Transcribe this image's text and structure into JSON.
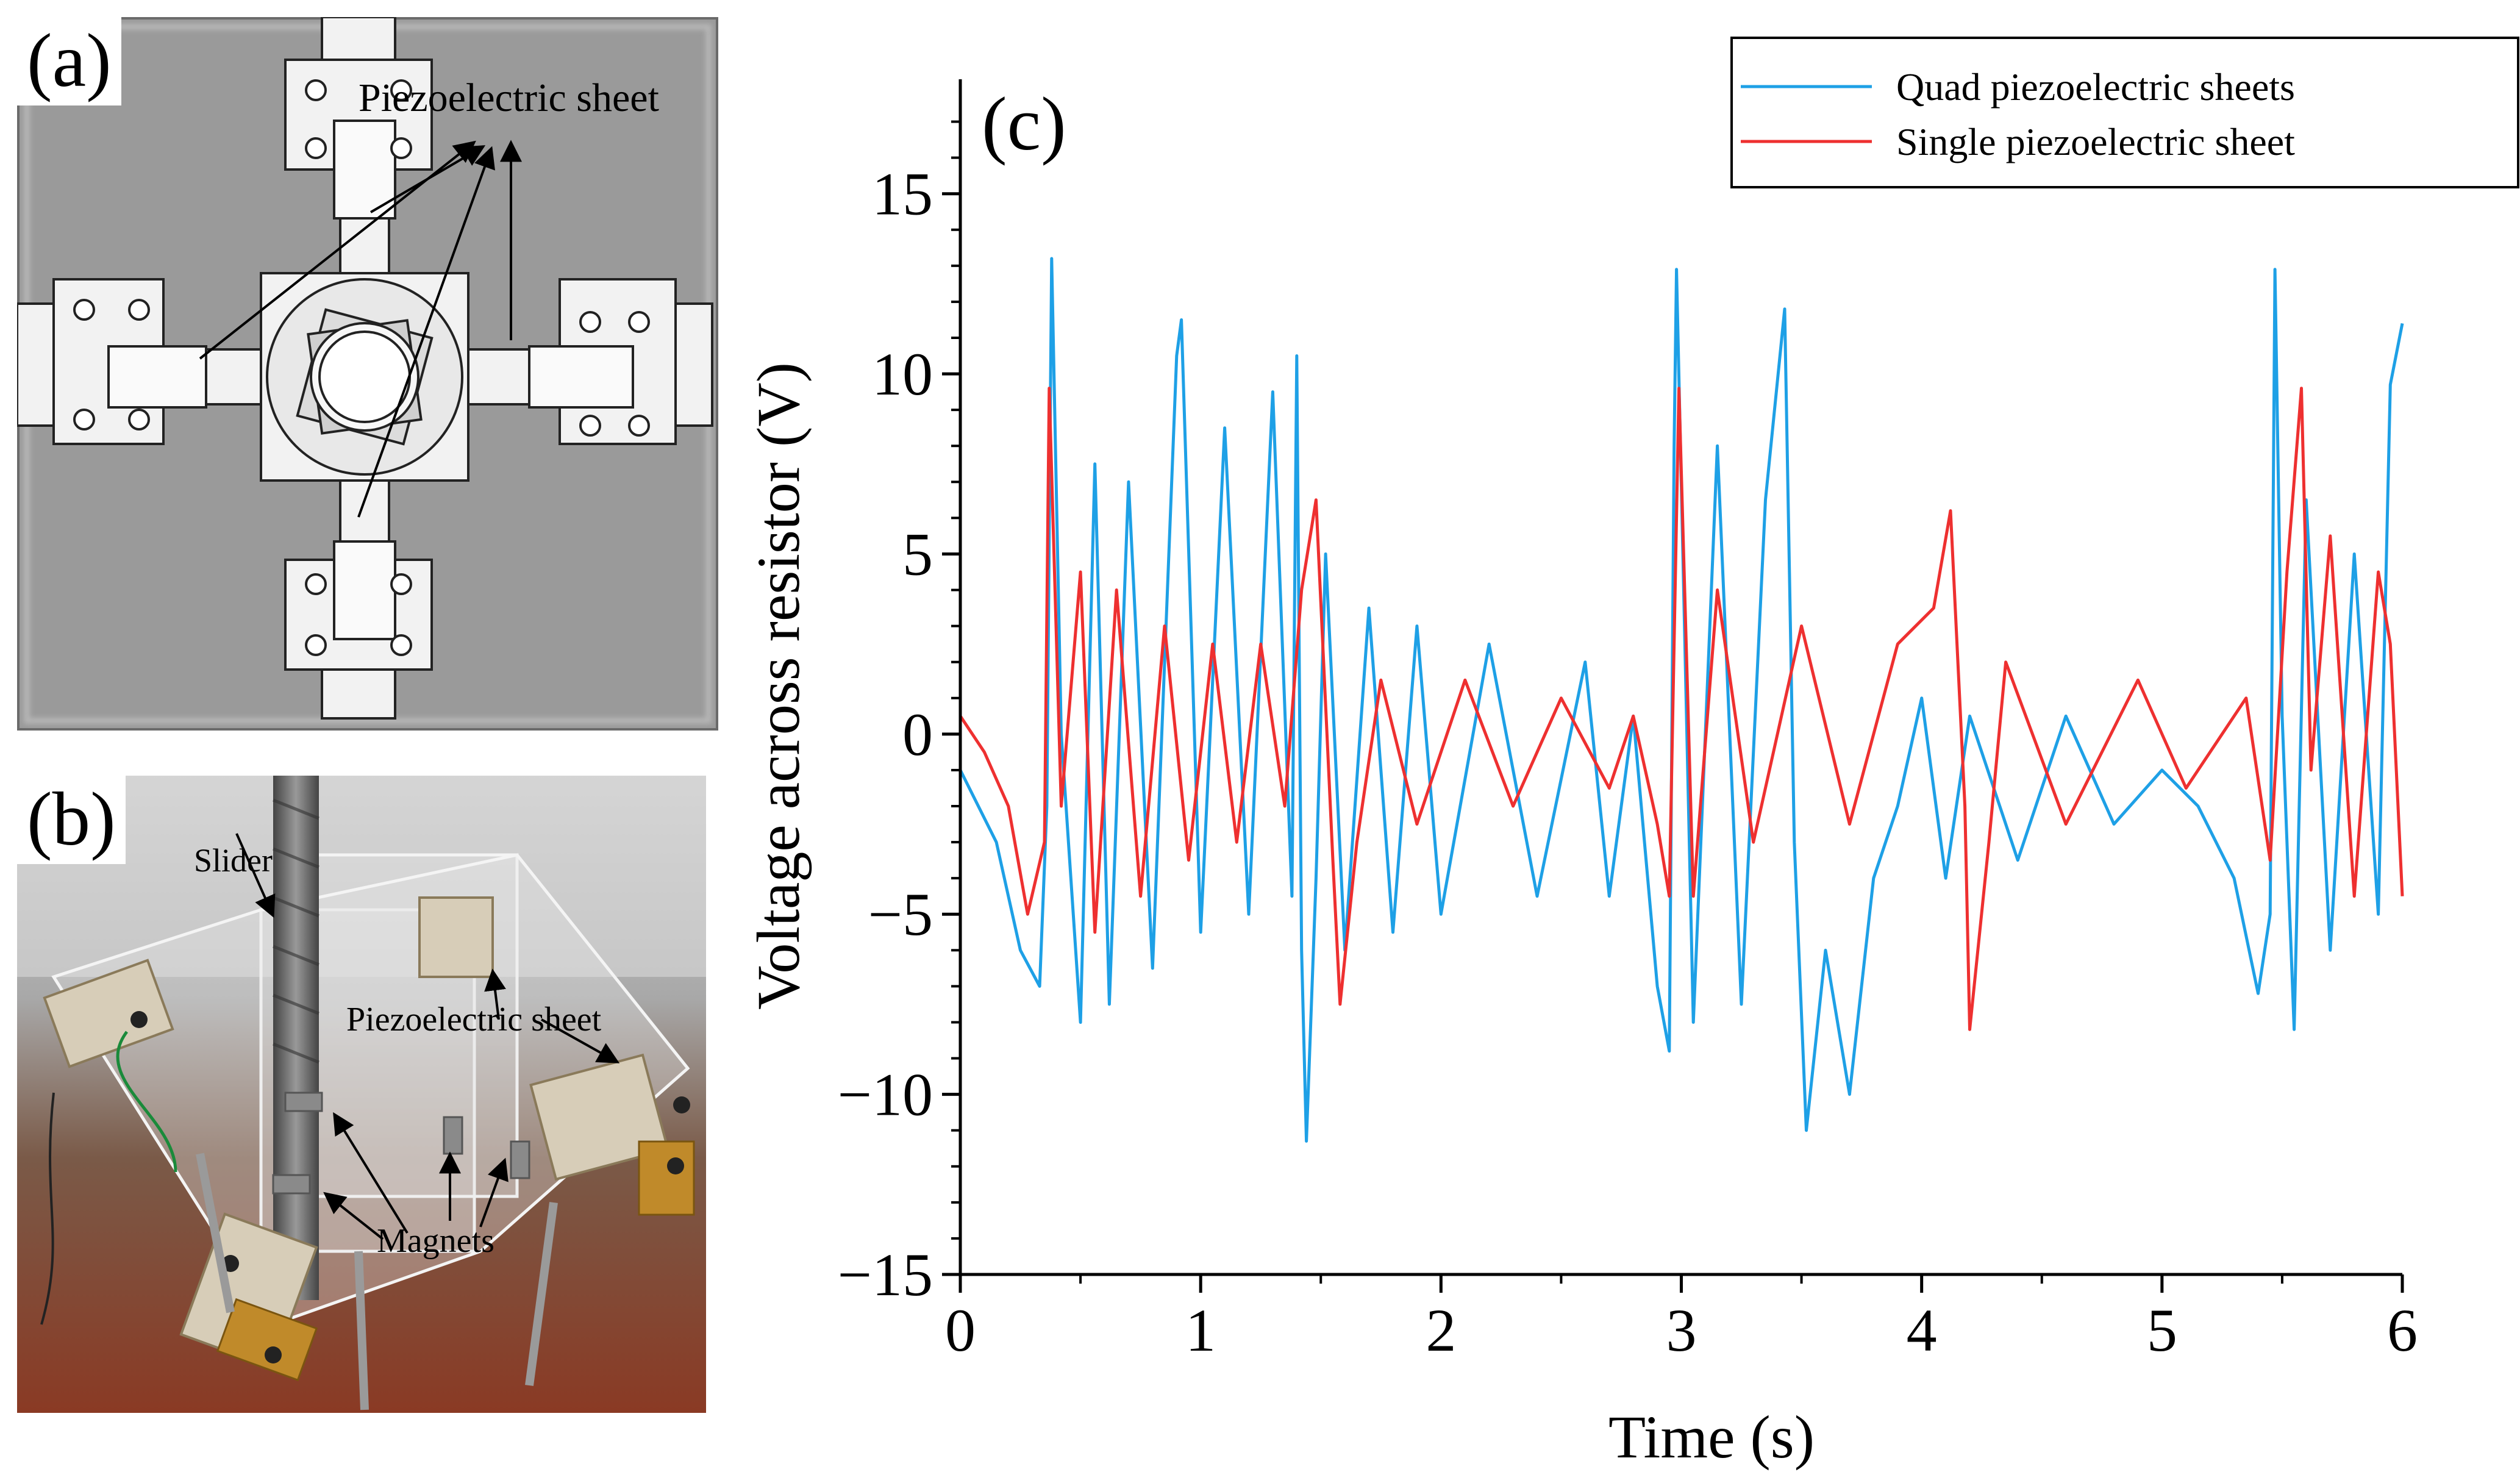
{
  "panel_a": {
    "label": "(a)",
    "annotation": "Piezoelectric sheet"
  },
  "panel_b": {
    "label": "(b)",
    "annotations": {
      "slider": "Slider",
      "piezo": "Piezoelectric sheet",
      "magnets": "Magnets"
    }
  },
  "chart_data": {
    "type": "line",
    "panel_label": "(c)",
    "title": "",
    "xlabel": "Time (s)",
    "ylabel": "Voltage across resistor (V)",
    "xlim": [
      0,
      6
    ],
    "ylim": [
      -15,
      17.5
    ],
    "xticks": [
      0,
      1,
      2,
      3,
      4,
      5,
      6
    ],
    "yticks": [
      -15,
      -10,
      -5,
      0,
      5,
      10,
      15
    ],
    "ytick_labels": [
      "−15",
      "−10",
      "−5",
      "0",
      "5",
      "10",
      "15"
    ],
    "legend_position": "top-right",
    "series": [
      {
        "name": "Quad piezoelectric sheets",
        "color": "#1ea0e6",
        "points": [
          [
            0,
            -1.0
          ],
          [
            0.15,
            -3.0
          ],
          [
            0.25,
            -6.0
          ],
          [
            0.33,
            -7.0
          ],
          [
            0.36,
            -2.0
          ],
          [
            0.38,
            13.2
          ],
          [
            0.42,
            0.0
          ],
          [
            0.5,
            -8.0
          ],
          [
            0.56,
            7.5
          ],
          [
            0.62,
            -7.5
          ],
          [
            0.7,
            7.0
          ],
          [
            0.8,
            -6.5
          ],
          [
            0.9,
            10.5
          ],
          [
            0.92,
            11.5
          ],
          [
            1.0,
            -5.5
          ],
          [
            1.1,
            8.5
          ],
          [
            1.2,
            -5.0
          ],
          [
            1.3,
            9.5
          ],
          [
            1.38,
            -4.5
          ],
          [
            1.4,
            10.5
          ],
          [
            1.42,
            -6.0
          ],
          [
            1.44,
            -11.3
          ],
          [
            1.48,
            -4.0
          ],
          [
            1.52,
            5.0
          ],
          [
            1.6,
            -6.0
          ],
          [
            1.7,
            3.5
          ],
          [
            1.8,
            -5.5
          ],
          [
            1.9,
            3.0
          ],
          [
            2.0,
            -5.0
          ],
          [
            2.2,
            2.5
          ],
          [
            2.4,
            -4.5
          ],
          [
            2.6,
            2.0
          ],
          [
            2.7,
            -4.5
          ],
          [
            2.8,
            0.5
          ],
          [
            2.9,
            -7.0
          ],
          [
            2.95,
            -8.8
          ],
          [
            2.97,
            8.0
          ],
          [
            2.98,
            12.9
          ],
          [
            3.05,
            -8.0
          ],
          [
            3.15,
            8.0
          ],
          [
            3.25,
            -7.5
          ],
          [
            3.35,
            6.5
          ],
          [
            3.43,
            11.8
          ],
          [
            3.47,
            -3.0
          ],
          [
            3.52,
            -11.0
          ],
          [
            3.6,
            -6.0
          ],
          [
            3.7,
            -10.0
          ],
          [
            3.8,
            -4.0
          ],
          [
            3.9,
            -2.0
          ],
          [
            4.0,
            1.0
          ],
          [
            4.1,
            -4.0
          ],
          [
            4.2,
            0.5
          ],
          [
            4.4,
            -3.5
          ],
          [
            4.6,
            0.5
          ],
          [
            4.8,
            -2.5
          ],
          [
            5.0,
            -1.0
          ],
          [
            5.15,
            -2.0
          ],
          [
            5.3,
            -4.0
          ],
          [
            5.4,
            -7.2
          ],
          [
            5.45,
            -5.0
          ],
          [
            5.47,
            12.9
          ],
          [
            5.5,
            0.5
          ],
          [
            5.55,
            -8.2
          ],
          [
            5.6,
            6.5
          ],
          [
            5.7,
            -6.0
          ],
          [
            5.8,
            5.0
          ],
          [
            5.9,
            -5.0
          ],
          [
            5.95,
            9.7
          ],
          [
            6.0,
            11.4
          ]
        ]
      },
      {
        "name": "Single piezoelectric sheet",
        "color": "#ee3030",
        "points": [
          [
            0,
            0.5
          ],
          [
            0.1,
            -0.5
          ],
          [
            0.2,
            -2.0
          ],
          [
            0.28,
            -5.0
          ],
          [
            0.35,
            -3.0
          ],
          [
            0.37,
            9.6
          ],
          [
            0.42,
            -2.0
          ],
          [
            0.5,
            4.5
          ],
          [
            0.56,
            -5.5
          ],
          [
            0.65,
            4.0
          ],
          [
            0.75,
            -4.5
          ],
          [
            0.85,
            3.0
          ],
          [
            0.95,
            -3.5
          ],
          [
            1.05,
            2.5
          ],
          [
            1.15,
            -3.0
          ],
          [
            1.25,
            2.5
          ],
          [
            1.35,
            -2.0
          ],
          [
            1.42,
            4.0
          ],
          [
            1.48,
            6.5
          ],
          [
            1.55,
            -3.5
          ],
          [
            1.58,
            -7.5
          ],
          [
            1.65,
            -3.0
          ],
          [
            1.75,
            1.5
          ],
          [
            1.9,
            -2.5
          ],
          [
            2.1,
            1.5
          ],
          [
            2.3,
            -2.0
          ],
          [
            2.5,
            1.0
          ],
          [
            2.7,
            -1.5
          ],
          [
            2.8,
            0.5
          ],
          [
            2.9,
            -2.5
          ],
          [
            2.95,
            -4.5
          ],
          [
            2.99,
            9.6
          ],
          [
            3.05,
            -4.5
          ],
          [
            3.15,
            4.0
          ],
          [
            3.3,
            -3.0
          ],
          [
            3.5,
            3.0
          ],
          [
            3.7,
            -2.5
          ],
          [
            3.9,
            2.5
          ],
          [
            4.05,
            3.5
          ],
          [
            4.12,
            6.2
          ],
          [
            4.18,
            -2.0
          ],
          [
            4.2,
            -8.2
          ],
          [
            4.28,
            -3.0
          ],
          [
            4.35,
            2.0
          ],
          [
            4.6,
            -2.5
          ],
          [
            4.9,
            1.5
          ],
          [
            5.1,
            -1.5
          ],
          [
            5.35,
            1.0
          ],
          [
            5.45,
            -3.5
          ],
          [
            5.52,
            4.5
          ],
          [
            5.58,
            9.6
          ],
          [
            5.62,
            -1.0
          ],
          [
            5.7,
            5.5
          ],
          [
            5.8,
            -4.5
          ],
          [
            5.9,
            4.5
          ],
          [
            5.95,
            2.5
          ],
          [
            6.0,
            -4.5
          ]
        ]
      }
    ]
  }
}
